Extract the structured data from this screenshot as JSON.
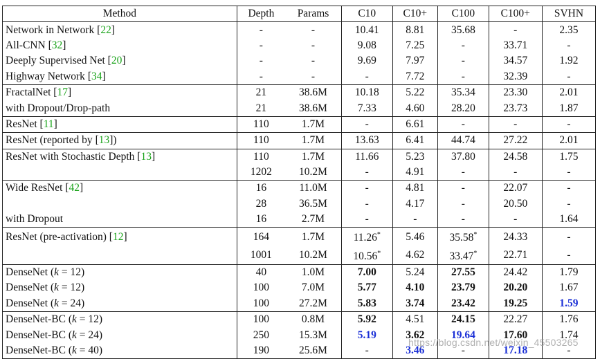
{
  "headers": [
    "Method",
    "Depth",
    "Params",
    "C10",
    "C10+",
    "C100",
    "C100+",
    "SVHN"
  ],
  "groups": [
    {
      "rows": [
        {
          "method": "Network in Network",
          "cite": "22",
          "depth": "-",
          "params": "-",
          "c10": "10.41",
          "c10p": "8.81",
          "c100": "35.68",
          "c100p": "-",
          "svhn": "2.35"
        },
        {
          "method": "All-CNN",
          "cite": "32",
          "depth": "-",
          "params": "-",
          "c10": "9.08",
          "c10p": "7.25",
          "c100": "-",
          "c100p": "33.71",
          "svhn": "-"
        },
        {
          "method": "Deeply Supervised Net",
          "cite": "20",
          "depth": "-",
          "params": "-",
          "c10": "9.69",
          "c10p": "7.97",
          "c100": "-",
          "c100p": "34.57",
          "svhn": "1.92"
        },
        {
          "method": "Highway Network",
          "cite": "34",
          "depth": "-",
          "params": "-",
          "c10": "-",
          "c10p": "7.72",
          "c100": "-",
          "c100p": "32.39",
          "svhn": "-"
        }
      ]
    },
    {
      "rows": [
        {
          "method": "FractalNet",
          "cite": "17",
          "depth": "21",
          "params": "38.6M",
          "c10": "10.18",
          "c10p": "5.22",
          "c100": "35.34",
          "c100p": "23.30",
          "svhn": "2.01"
        },
        {
          "method": "with Dropout/Drop-path",
          "cite": "",
          "depth": "21",
          "params": "38.6M",
          "c10": "7.33",
          "c10p": "4.60",
          "c100": "28.20",
          "c100p": "23.73",
          "svhn": "1.87"
        }
      ]
    },
    {
      "rows": [
        {
          "method": "ResNet",
          "cite": "11",
          "depth": "110",
          "params": "1.7M",
          "c10": "-",
          "c10p": "6.61",
          "c100": "-",
          "c100p": "-",
          "svhn": "-"
        }
      ]
    },
    {
      "rows": [
        {
          "method": "ResNet (reported by",
          "cite": "13",
          "suffix": ")",
          "depth": "110",
          "params": "1.7M",
          "c10": "13.63",
          "c10p": "6.41",
          "c100": "44.74",
          "c100p": "27.22",
          "svhn": "2.01"
        }
      ]
    },
    {
      "rows": [
        {
          "method": "ResNet with Stochastic Depth",
          "cite": "13",
          "depth": "110",
          "params": "1.7M",
          "c10": "11.66",
          "c10p": "5.23",
          "c100": "37.80",
          "c100p": "24.58",
          "svhn": "1.75"
        },
        {
          "method": "",
          "cite": "",
          "depth": "1202",
          "params": "10.2M",
          "c10": "-",
          "c10p": "4.91",
          "c100": "-",
          "c100p": "-",
          "svhn": "-"
        }
      ]
    },
    {
      "rows": [
        {
          "method": "Wide ResNet",
          "cite": "42",
          "depth": "16",
          "params": "11.0M",
          "c10": "-",
          "c10p": "4.81",
          "c100": "-",
          "c100p": "22.07",
          "svhn": "-"
        },
        {
          "method": "",
          "cite": "",
          "depth": "28",
          "params": "36.5M",
          "c10": "-",
          "c10p": "4.17",
          "c100": "-",
          "c100p": "20.50",
          "svhn": "-"
        },
        {
          "method": "with Dropout",
          "cite": "",
          "depth": "16",
          "params": "2.7M",
          "c10": "-",
          "c10p": "-",
          "c100": "-",
          "c100p": "-",
          "svhn": "1.64"
        }
      ]
    },
    {
      "rows": [
        {
          "method": "ResNet (pre-activation)",
          "cite": "12",
          "depth": "164",
          "params": "1.7M",
          "c10": "11.26*",
          "c10p": "5.46",
          "c100": "35.58*",
          "c100p": "24.33",
          "svhn": "-"
        },
        {
          "method": "",
          "cite": "",
          "depth": "1001",
          "params": "10.2M",
          "c10": "10.56*",
          "c10p": "4.62",
          "c100": "33.47*",
          "c100p": "22.71",
          "svhn": "-"
        }
      ]
    },
    {
      "rows": [
        {
          "method": "DenseNet (",
          "k": "12",
          "depth": "40",
          "params": "1.0M",
          "c10": "7.00",
          "c10p": "5.24",
          "c100": "27.55",
          "c100p": "24.42",
          "svhn": "1.79",
          "bold": [
            "c10",
            "c100"
          ]
        },
        {
          "method": "DenseNet (",
          "k": "12",
          "depth": "100",
          "params": "7.0M",
          "c10": "5.77",
          "c10p": "4.10",
          "c100": "23.79",
          "c100p": "20.20",
          "svhn": "1.67",
          "bold": [
            "c10",
            "c10p",
            "c100",
            "c100p"
          ]
        },
        {
          "method": "DenseNet (",
          "k": "24",
          "depth": "100",
          "params": "27.2M",
          "c10": "5.83",
          "c10p": "3.74",
          "c100": "23.42",
          "c100p": "19.25",
          "svhn": "1.59",
          "bold": [
            "c10",
            "c10p",
            "c100",
            "c100p"
          ],
          "blue": [
            "svhn"
          ]
        }
      ]
    },
    {
      "rows": [
        {
          "method": "DenseNet-BC (",
          "k": "12",
          "depth": "100",
          "params": "0.8M",
          "c10": "5.92",
          "c10p": "4.51",
          "c100": "24.15",
          "c100p": "22.27",
          "svhn": "1.76",
          "bold": [
            "c10",
            "c100"
          ]
        },
        {
          "method": "DenseNet-BC (",
          "k": "24",
          "depth": "250",
          "params": "15.3M",
          "c10": "5.19",
          "c10p": "3.62",
          "c100": "19.64",
          "c100p": "17.60",
          "svhn": "1.74",
          "bold": [
            "c10p",
            "c100p"
          ],
          "blue": [
            "c10",
            "c100"
          ]
        },
        {
          "method": "DenseNet-BC (",
          "k": "40",
          "depth": "190",
          "params": "25.6M",
          "c10": "-",
          "c10p": "3.46",
          "c100": "-",
          "c100p": "17.18",
          "svhn": "-",
          "blue": [
            "c10p",
            "c100p"
          ]
        }
      ]
    }
  ],
  "watermark": "https://blog.csdn.net/weixin_45503265"
}
